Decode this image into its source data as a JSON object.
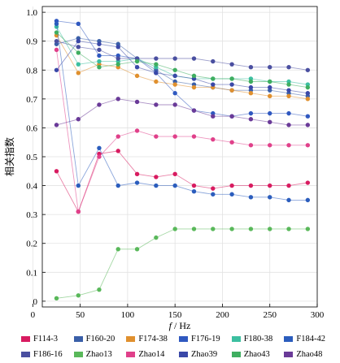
{
  "chart_data": {
    "type": "line",
    "xlabel": "f / Hz",
    "xlabel_italic_part": "f",
    "xlabel_rest": " / Hz",
    "ylabel": "相关指数",
    "xlim": [
      10,
      300
    ],
    "ylim": [
      -0.02,
      1.02
    ],
    "x_ticks": [
      0,
      50,
      100,
      150,
      200,
      250,
      300
    ],
    "y_ticks": [
      0,
      0.1,
      0.2,
      0.3,
      0.4,
      0.5,
      0.6,
      0.7,
      0.8,
      0.9,
      1.0
    ],
    "y_tick_labels": [
      "0",
      "0.1",
      "0.2",
      "0.3",
      "0.4",
      "0.5",
      "0.6",
      "0.7",
      "0.8",
      "0.9",
      "1.0"
    ],
    "legend_placement": "bottom",
    "series": [
      {
        "name": "F114-3",
        "color": "#d81b60",
        "x": [
          25,
          48,
          70,
          90,
          110,
          130,
          150,
          170,
          190,
          210,
          230,
          250,
          270,
          290
        ],
        "y": [
          0.45,
          0.31,
          0.51,
          0.52,
          0.44,
          0.43,
          0.44,
          0.4,
          0.39,
          0.4,
          0.4,
          0.4,
          0.4,
          0.41
        ]
      },
      {
        "name": "F160-20",
        "color": "#3a5fa8",
        "x": [
          25,
          48,
          70,
          90,
          110,
          130,
          150,
          170,
          190,
          210,
          230,
          250,
          270,
          290
        ],
        "y": [
          0.89,
          0.91,
          0.9,
          0.89,
          0.84,
          0.8,
          0.76,
          0.75,
          0.74,
          0.73,
          0.73,
          0.73,
          0.72,
          0.71
        ]
      },
      {
        "name": "F174-38",
        "color": "#e0902e",
        "x": [
          25,
          48,
          70,
          90,
          110,
          130,
          150,
          170,
          190,
          210,
          230,
          250,
          270,
          290
        ],
        "y": [
          0.92,
          0.79,
          0.82,
          0.81,
          0.78,
          0.76,
          0.75,
          0.74,
          0.74,
          0.73,
          0.72,
          0.71,
          0.71,
          0.7
        ]
      },
      {
        "name": "F176-19",
        "color": "#2f58c0",
        "x": [
          25,
          48,
          70,
          90,
          110,
          130,
          150,
          170,
          190,
          210,
          230,
          250,
          270,
          290
        ],
        "y": [
          0.97,
          0.96,
          0.85,
          0.85,
          0.84,
          0.79,
          0.72,
          0.66,
          0.65,
          0.64,
          0.65,
          0.65,
          0.65,
          0.64
        ]
      },
      {
        "name": "F180-38",
        "color": "#3cbfa0",
        "x": [
          25,
          48,
          70,
          90,
          110,
          130,
          150,
          170,
          190,
          210,
          230,
          250,
          270,
          290
        ],
        "y": [
          0.95,
          0.82,
          0.83,
          0.83,
          0.84,
          0.81,
          0.78,
          0.77,
          0.77,
          0.77,
          0.77,
          0.76,
          0.76,
          0.75
        ]
      },
      {
        "name": "F184-42",
        "color": "#2b5dbd",
        "x": [
          25,
          48,
          70,
          90,
          110,
          130,
          150,
          170,
          190,
          210,
          230,
          250,
          270,
          290
        ],
        "y": [
          0.96,
          0.4,
          0.53,
          0.4,
          0.41,
          0.4,
          0.4,
          0.38,
          0.37,
          0.37,
          0.36,
          0.36,
          0.35,
          0.35
        ]
      },
      {
        "name": "F186-16",
        "color": "#4a4fa0",
        "x": [
          25,
          48,
          70,
          90,
          110,
          130,
          150,
          170,
          190,
          210,
          230,
          250,
          270,
          290
        ],
        "y": [
          0.9,
          0.88,
          0.87,
          0.84,
          0.84,
          0.84,
          0.84,
          0.84,
          0.83,
          0.82,
          0.81,
          0.81,
          0.81,
          0.8
        ]
      },
      {
        "name": "Zhao13",
        "color": "#59b85a",
        "x": [
          25,
          48,
          70,
          90,
          110,
          130,
          150,
          170,
          190,
          210,
          230,
          250,
          270,
          290
        ],
        "y": [
          0.01,
          0.02,
          0.04,
          0.18,
          0.18,
          0.22,
          0.25,
          0.25,
          0.25,
          0.25,
          0.25,
          0.25,
          0.25,
          0.25
        ]
      },
      {
        "name": "Zhao14",
        "color": "#e0408a",
        "x": [
          25,
          48,
          70,
          90,
          110,
          130,
          150,
          170,
          190,
          210,
          230,
          250,
          270,
          290
        ],
        "y": [
          0.87,
          0.31,
          0.5,
          0.57,
          0.59,
          0.57,
          0.57,
          0.57,
          0.56,
          0.55,
          0.54,
          0.54,
          0.54,
          0.54
        ]
      },
      {
        "name": "Zhao39",
        "color": "#3a48a8",
        "x": [
          25,
          48,
          70,
          90,
          110,
          130,
          150,
          170,
          190,
          210,
          230,
          250,
          270,
          290
        ],
        "y": [
          0.8,
          0.9,
          0.89,
          0.88,
          0.81,
          0.79,
          0.78,
          0.77,
          0.75,
          0.75,
          0.74,
          0.74,
          0.73,
          0.72
        ]
      },
      {
        "name": "Zhao43",
        "color": "#3fae60",
        "x": [
          25,
          48,
          70,
          90,
          110,
          130,
          150,
          170,
          190,
          210,
          230,
          250,
          270,
          290
        ],
        "y": [
          0.93,
          0.86,
          0.81,
          0.82,
          0.83,
          0.82,
          0.8,
          0.78,
          0.77,
          0.77,
          0.76,
          0.76,
          0.75,
          0.74
        ]
      },
      {
        "name": "Zhao48",
        "color": "#6a3a98",
        "x": [
          25,
          48,
          70,
          90,
          110,
          130,
          150,
          170,
          190,
          210,
          230,
          250,
          270,
          290
        ],
        "y": [
          0.61,
          0.63,
          0.68,
          0.7,
          0.69,
          0.68,
          0.68,
          0.66,
          0.64,
          0.64,
          0.63,
          0.62,
          0.61,
          0.61
        ]
      }
    ]
  }
}
